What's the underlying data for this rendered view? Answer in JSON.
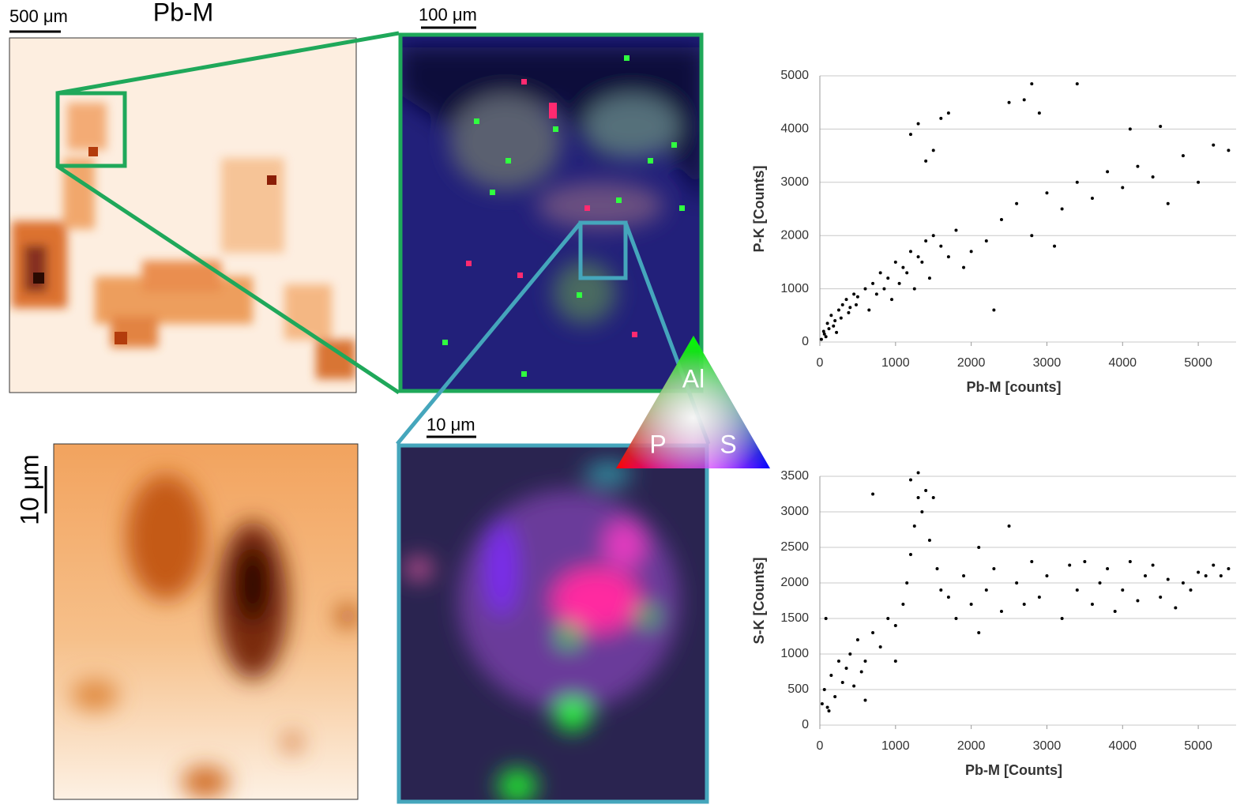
{
  "panels": {
    "scale_top_left": "500 μm",
    "title_top_left": "Pb-M",
    "scale_top_middle": "100 μm",
    "scale_bottom_middle": "10 μm",
    "scale_bottom_left": "10 μm",
    "triangle": {
      "top": "Al",
      "left": "P",
      "right": "S"
    }
  },
  "chart_data": [
    {
      "type": "scatter",
      "x_label": "Pb-M [counts]",
      "y_label": "P-K [Counts]",
      "color": "#000000",
      "grid": true,
      "xlim": [
        0,
        5500
      ],
      "ylim": [
        0,
        5000
      ],
      "xticks": [
        0,
        1000,
        2000,
        3000,
        4000,
        5000
      ],
      "yticks": [
        0,
        1000,
        2000,
        3000,
        4000,
        5000
      ],
      "x": [
        50,
        100,
        150,
        200,
        250,
        300,
        350,
        400,
        450,
        500,
        600,
        700,
        800,
        900,
        1000,
        1100,
        1200,
        1300,
        1400,
        1500,
        80,
        180,
        280,
        380,
        480,
        650,
        750,
        850,
        950,
        1050,
        1150,
        1250,
        1350,
        1450,
        1600,
        1700,
        1800,
        1900,
        2000,
        2200,
        2400,
        2600,
        2800,
        3000,
        3200,
        3400,
        3600,
        3800,
        4000,
        4200,
        4400,
        4600,
        4800,
        5000,
        5200,
        5400,
        1200,
        1300,
        1500,
        1600,
        1700,
        1400,
        2500,
        2700,
        2900,
        3400,
        2800,
        4100,
        4500,
        2300,
        3100,
        20,
        60,
        120,
        220
      ],
      "values": [
        200,
        350,
        500,
        400,
        600,
        700,
        800,
        650,
        900,
        850,
        1000,
        1100,
        1300,
        1200,
        1500,
        1400,
        1700,
        1600,
        1900,
        2000,
        100,
        300,
        450,
        550,
        700,
        600,
        900,
        1000,
        800,
        1100,
        1300,
        1000,
        1500,
        1200,
        1800,
        1600,
        2100,
        1400,
        1700,
        1900,
        2300,
        2600,
        2000,
        2800,
        2500,
        3000,
        2700,
        3200,
        2900,
        3300,
        3100,
        2600,
        3500,
        3000,
        3700,
        3600,
        3900,
        4100,
        3600,
        4200,
        4300,
        3400,
        4500,
        4550,
        4300,
        4850,
        4850,
        4000,
        4050,
        600,
        1800,
        50,
        150,
        250,
        180
      ]
    },
    {
      "type": "scatter",
      "x_label": "Pb-M [Counts]",
      "y_label": "S-K [Counts]",
      "color": "#000000",
      "grid": true,
      "xlim": [
        0,
        5500
      ],
      "ylim": [
        0,
        3500
      ],
      "xticks": [
        0,
        1000,
        2000,
        3000,
        4000,
        5000
      ],
      "yticks": [
        0,
        500,
        1000,
        1500,
        2000,
        2500,
        3000,
        3500
      ],
      "x": [
        30,
        60,
        100,
        150,
        200,
        250,
        300,
        350,
        400,
        450,
        500,
        550,
        600,
        700,
        800,
        900,
        1000,
        1100,
        1150,
        1200,
        1250,
        1300,
        1350,
        1400,
        1500,
        1200,
        1300,
        1450,
        1550,
        1600,
        1700,
        1800,
        1900,
        2000,
        2100,
        2200,
        2300,
        2400,
        2500,
        2600,
        2700,
        2800,
        2900,
        3000,
        3200,
        3300,
        3400,
        3500,
        3600,
        3700,
        3800,
        3900,
        4000,
        4100,
        4200,
        4300,
        4400,
        4500,
        4600,
        4700,
        4800,
        4900,
        5000,
        5100,
        5200,
        5300,
        5400,
        700,
        80,
        120,
        2100,
        1000,
        600
      ],
      "values": [
        300,
        500,
        250,
        700,
        400,
        900,
        600,
        800,
        1000,
        550,
        1200,
        750,
        900,
        1300,
        1100,
        1500,
        1400,
        1700,
        2000,
        2400,
        2800,
        3200,
        3000,
        3300,
        3200,
        3450,
        3550,
        2600,
        2200,
        1900,
        1800,
        1500,
        2100,
        1700,
        1300,
        1900,
        2200,
        1600,
        2800,
        2000,
        1700,
        2300,
        1800,
        2100,
        1500,
        2250,
        1900,
        2300,
        1700,
        2000,
        2200,
        1600,
        1900,
        2300,
        1750,
        2100,
        2250,
        1800,
        2050,
        1650,
        2000,
        1900,
        2150,
        2100,
        2250,
        2100,
        2200,
        3250,
        1500,
        200,
        2500,
        900,
        350
      ]
    }
  ]
}
